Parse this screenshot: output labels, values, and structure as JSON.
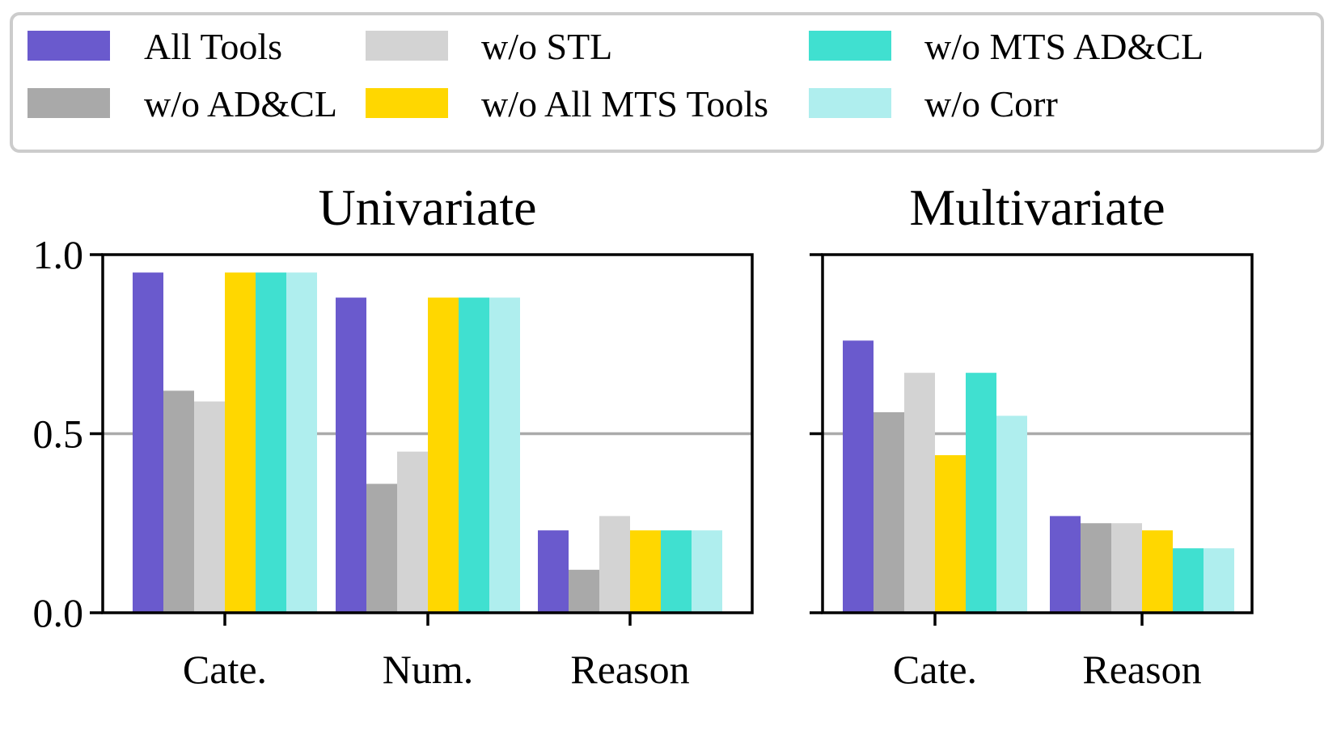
{
  "chart_data": {
    "type": "bar",
    "ylim": [
      0,
      1
    ],
    "yticks": [
      "0.0",
      "0.5",
      "1.0"
    ],
    "reference_line": 0.5,
    "legend": {
      "placement": "top",
      "entries": [
        {
          "name": "All Tools",
          "color": "#6a5acd"
        },
        {
          "name": "w/o AD&CL",
          "color": "#a9a9a9"
        },
        {
          "name": "w/o STL",
          "color": "#d3d3d3"
        },
        {
          "name": "w/o All MTS Tools",
          "color": "#ffd700"
        },
        {
          "name": "w/o MTS AD&CL",
          "color": "#40e0d0"
        },
        {
          "name": "w/o Corr",
          "color": "#afeeee"
        }
      ]
    },
    "panels": [
      {
        "title": "Univariate",
        "categories": [
          "Cate.",
          "Num.",
          "Reason"
        ],
        "series": [
          {
            "name": "All Tools",
            "values": [
              0.95,
              0.88,
              0.23
            ]
          },
          {
            "name": "w/o AD&CL",
            "values": [
              0.62,
              0.36,
              0.12
            ]
          },
          {
            "name": "w/o STL",
            "values": [
              0.59,
              0.45,
              0.27
            ]
          },
          {
            "name": "w/o All MTS Tools",
            "values": [
              0.95,
              0.88,
              0.23
            ]
          },
          {
            "name": "w/o MTS AD&CL",
            "values": [
              0.95,
              0.88,
              0.23
            ]
          },
          {
            "name": "w/o Corr",
            "values": [
              0.95,
              0.88,
              0.23
            ]
          }
        ]
      },
      {
        "title": "Multivariate",
        "categories": [
          "Cate.",
          "Reason"
        ],
        "series": [
          {
            "name": "All Tools",
            "values": [
              0.76,
              0.27
            ]
          },
          {
            "name": "w/o AD&CL",
            "values": [
              0.56,
              0.25
            ]
          },
          {
            "name": "w/o STL",
            "values": [
              0.67,
              0.25
            ]
          },
          {
            "name": "w/o All MTS Tools",
            "values": [
              0.44,
              0.23
            ]
          },
          {
            "name": "w/o MTS AD&CL",
            "values": [
              0.67,
              0.18
            ]
          },
          {
            "name": "w/o Corr",
            "values": [
              0.55,
              0.18
            ]
          }
        ]
      }
    ]
  }
}
